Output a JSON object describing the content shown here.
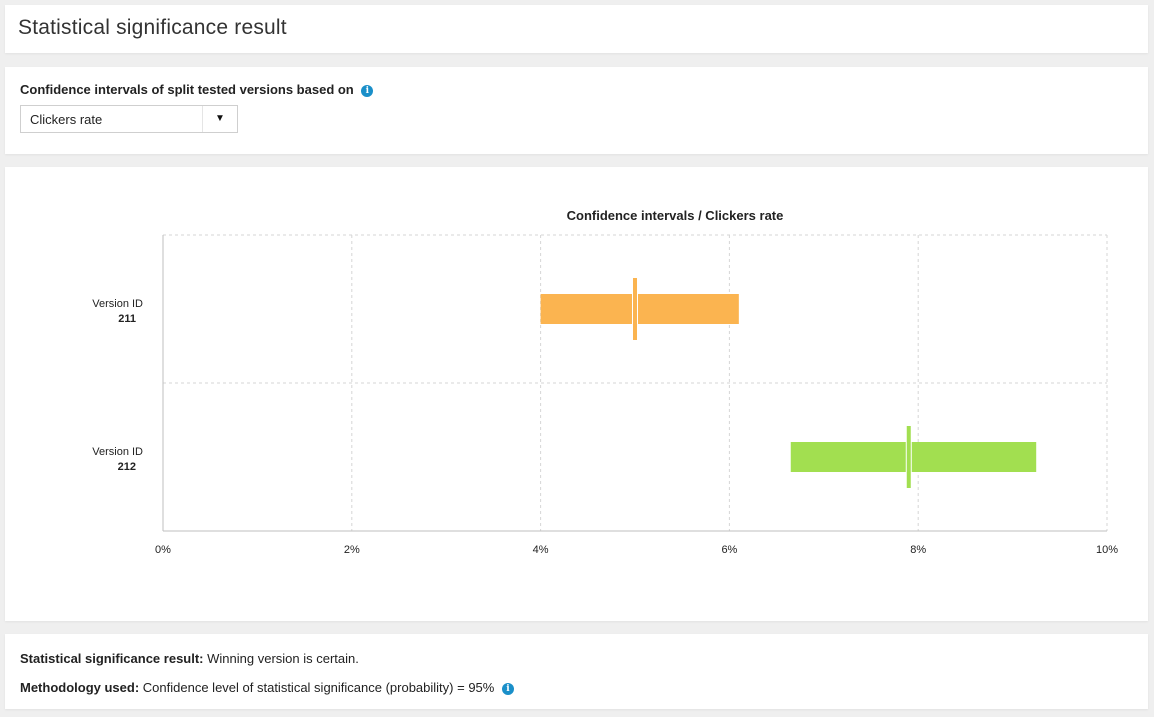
{
  "page": {
    "title": "Statistical significance result"
  },
  "selector": {
    "label": "Confidence intervals of split tested versions based on",
    "selected": "Clickers rate"
  },
  "chart_data": {
    "type": "interval",
    "title": "Confidence intervals / Clickers rate",
    "xlabel": "",
    "ylabel": "",
    "xlim": [
      0,
      10
    ],
    "xticks": [
      "0%",
      "2%",
      "4%",
      "6%",
      "8%",
      "10%"
    ],
    "grid": true,
    "series": [
      {
        "label_top": "Version ID",
        "label_id": "211",
        "low": 4.0,
        "high": 6.1,
        "point": 5.0,
        "color": "#fbb450"
      },
      {
        "label_top": "Version ID",
        "label_id": "212",
        "low": 6.65,
        "high": 9.25,
        "point": 7.9,
        "color": "#a2df50"
      }
    ]
  },
  "summary": {
    "result_label": "Statistical significance result:",
    "result_value": "Winning version is certain.",
    "method_label": "Methodology used:",
    "method_value": "Confidence level of statistical significance (probability) = 95%"
  },
  "icons": {
    "info": "info-icon"
  }
}
